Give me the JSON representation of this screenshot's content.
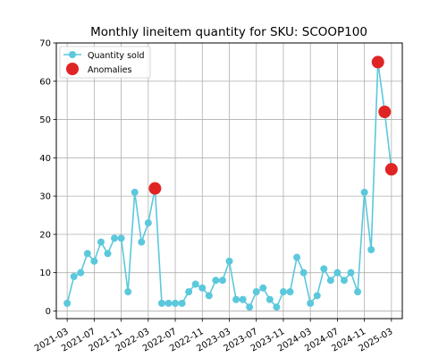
{
  "chart_data": {
    "type": "line",
    "title": "Monthly lineitem quantity for SKU: SCOOP100",
    "xlabel": "",
    "ylabel": "",
    "x_tick_labels": [
      "2021-03",
      "2021-07",
      "2021-11",
      "2022-03",
      "2022-07",
      "2022-11",
      "2023-03",
      "2023-07",
      "2023-11",
      "2024-03",
      "2024-07",
      "2024-11",
      "2025-03"
    ],
    "ylim": [
      -2,
      70
    ],
    "y_ticks": [
      0,
      10,
      20,
      30,
      40,
      50,
      60,
      70
    ],
    "grid": true,
    "legend_position": "top-left",
    "series": [
      {
        "name": "Quantity sold",
        "color": "#5bc8dc",
        "marker": "circle",
        "x": [
          "2021-03",
          "2021-04",
          "2021-05",
          "2021-06",
          "2021-07",
          "2021-08",
          "2021-09",
          "2021-10",
          "2021-11",
          "2021-12",
          "2022-01",
          "2022-02",
          "2022-03",
          "2022-04",
          "2022-05",
          "2022-06",
          "2022-07",
          "2022-08",
          "2022-09",
          "2022-10",
          "2022-11",
          "2022-12",
          "2023-01",
          "2023-02",
          "2023-03",
          "2023-04",
          "2023-05",
          "2023-06",
          "2023-07",
          "2023-08",
          "2023-09",
          "2023-10",
          "2023-11",
          "2023-12",
          "2024-01",
          "2024-02",
          "2024-03",
          "2024-04",
          "2024-05",
          "2024-06",
          "2024-07",
          "2024-08",
          "2024-09",
          "2024-10",
          "2024-11",
          "2024-12",
          "2025-01",
          "2025-02",
          "2025-03"
        ],
        "values": [
          2,
          9,
          10,
          15,
          13,
          18,
          15,
          19,
          19,
          5,
          31,
          18,
          23,
          32,
          2,
          2,
          2,
          2,
          5,
          7,
          6,
          4,
          8,
          8,
          13,
          3,
          3,
          1,
          5,
          6,
          3,
          1,
          5,
          5,
          14,
          10,
          2,
          4,
          11,
          8,
          10,
          8,
          10,
          5,
          31,
          16,
          65,
          52,
          37
        ]
      },
      {
        "name": "Anomalies",
        "color": "#e02424",
        "marker": "circle",
        "x": [
          "2022-04",
          "2025-01",
          "2025-02",
          "2025-03"
        ],
        "values": [
          32,
          65,
          52,
          37
        ]
      }
    ]
  }
}
